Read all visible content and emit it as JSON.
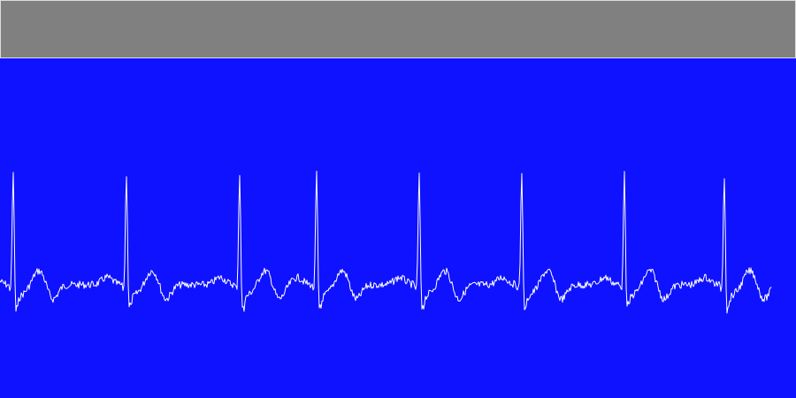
{
  "colors": {
    "toolbar_bg": "#808080",
    "toolbar_border": "#dcdcdc",
    "monitor_bg": "#0f12ff",
    "trace": "#ffffff"
  },
  "ecg": {
    "beats": [
      {
        "r_peak": 1.0,
        "s_depth": 0.27
      },
      {
        "r_peak": 1.0,
        "s_depth": 0.25
      },
      {
        "r_peak": 1.0,
        "s_depth": 0.26
      },
      {
        "r_peak": 1.0,
        "s_depth": 0.26
      },
      {
        "r_peak": 0.98,
        "s_depth": 0.25
      },
      {
        "r_peak": 1.02,
        "s_depth": 0.28
      },
      {
        "r_peak": 0.99,
        "s_depth": 0.25
      },
      {
        "r_peak": 0.99,
        "s_depth": 0.27
      }
    ],
    "noise": 0.03
  }
}
